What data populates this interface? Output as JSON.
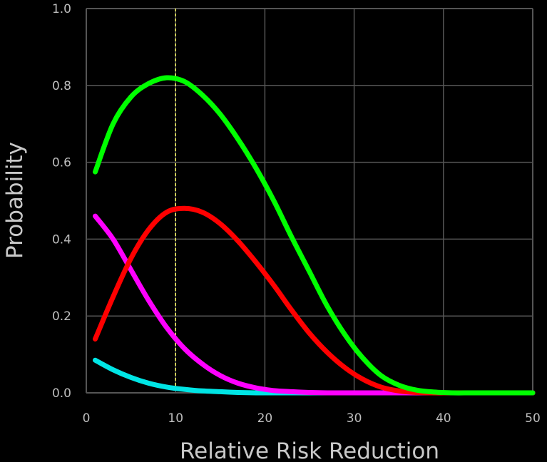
{
  "chart_data": {
    "type": "line",
    "title": "",
    "xlabel": "Relative Risk Reduction",
    "ylabel": "Probability",
    "xlim": [
      0,
      50
    ],
    "ylim": [
      0,
      1.0
    ],
    "xticks": [
      "0",
      "10",
      "20",
      "30",
      "40",
      "50"
    ],
    "yticks": [
      "0.0",
      "0.2",
      "0.4",
      "0.6",
      "0.8",
      "1.0"
    ],
    "grid": true,
    "background": "#000000",
    "reference_line": {
      "x": 10,
      "color": "#ffff66",
      "style": "dashed"
    },
    "series": [
      {
        "color": "#00ff00",
        "x": [
          1,
          3,
          5,
          7,
          9,
          11,
          13,
          15,
          17,
          19,
          21,
          23,
          25,
          27,
          29,
          31,
          33,
          35,
          37,
          39,
          41,
          43,
          45,
          47,
          50
        ],
        "y": [
          0.575,
          0.7,
          0.77,
          0.805,
          0.82,
          0.81,
          0.775,
          0.725,
          0.66,
          0.585,
          0.5,
          0.405,
          0.315,
          0.225,
          0.15,
          0.09,
          0.045,
          0.02,
          0.007,
          0.002,
          0.0,
          0.0,
          0.0,
          0.0,
          0.0
        ]
      },
      {
        "color": "#ff0000",
        "x": [
          1,
          3,
          5,
          7,
          9,
          11,
          13,
          15,
          17,
          19,
          21,
          23,
          25,
          27,
          29,
          31,
          33,
          35,
          37,
          39,
          41,
          43,
          45,
          47,
          50
        ],
        "y": [
          0.14,
          0.25,
          0.35,
          0.425,
          0.47,
          0.48,
          0.47,
          0.44,
          0.395,
          0.34,
          0.28,
          0.215,
          0.155,
          0.105,
          0.065,
          0.035,
          0.015,
          0.005,
          0.001,
          0.0,
          0.0,
          0.0,
          0.0,
          0.0,
          0.0
        ]
      },
      {
        "color": "#ff00ff",
        "x": [
          1,
          3,
          5,
          7,
          9,
          11,
          13,
          15,
          17,
          19,
          21,
          23,
          25,
          27,
          29,
          31,
          33,
          35,
          37,
          39,
          41,
          43,
          45,
          47,
          50
        ],
        "y": [
          0.46,
          0.4,
          0.32,
          0.24,
          0.17,
          0.115,
          0.075,
          0.045,
          0.025,
          0.013,
          0.006,
          0.003,
          0.001,
          0.0,
          0.0,
          0.0,
          0.0,
          0.0,
          0.0,
          0.0,
          0.0,
          0.0,
          0.0,
          0.0,
          0.0
        ]
      },
      {
        "color": "#00e5e5",
        "x": [
          1,
          3,
          5,
          7,
          9,
          11,
          13,
          15,
          17,
          19,
          21,
          23,
          25,
          27,
          29,
          31,
          33,
          35,
          37,
          39,
          41,
          43,
          45,
          47,
          50
        ],
        "y": [
          0.085,
          0.06,
          0.04,
          0.025,
          0.015,
          0.009,
          0.005,
          0.003,
          0.001,
          0.0,
          0.0,
          0.0,
          0.0,
          0.0,
          0.0,
          0.0,
          0.0,
          0.0,
          0.0,
          0.0,
          0.0,
          0.0,
          0.0,
          0.0,
          0.0
        ]
      }
    ]
  }
}
